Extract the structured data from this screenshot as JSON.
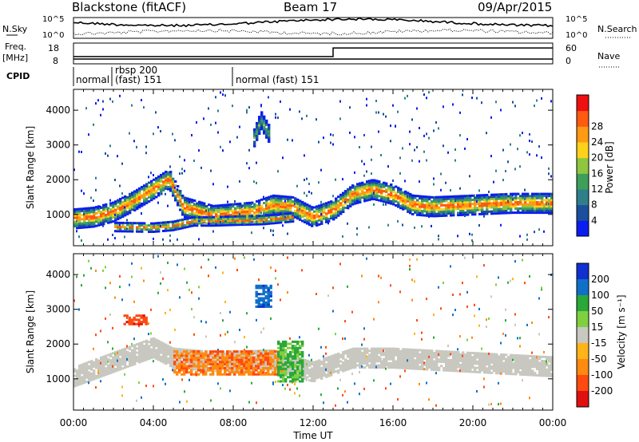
{
  "header": {
    "radar": "Blackstone (fitACF)",
    "beam": "Beam 17",
    "date": "09/Apr/2015"
  },
  "sky_panel": {
    "left_label": "N.Sky",
    "right_label": "N.Search",
    "left_ticks": [
      "10^5",
      "10^0"
    ],
    "right_ticks": [
      "10^5",
      "10^0"
    ]
  },
  "freq_panel": {
    "left_label_1": "Freq.",
    "left_label_2": "[MHz]",
    "right_label": "Nave",
    "left_ticks": [
      "18",
      "8"
    ],
    "right_ticks": [
      "60",
      "0"
    ],
    "freq_mhz": [
      {
        "t": 0,
        "v": 10.3
      },
      {
        "t": 24,
        "v": 10.3
      }
    ],
    "nave": [
      {
        "t": 0,
        "v": 21
      },
      {
        "t": 13,
        "v": 21
      },
      {
        "t": 13,
        "v": 46
      },
      {
        "t": 24,
        "v": 46
      }
    ]
  },
  "cpid": {
    "label": "CPID",
    "segments": [
      {
        "start": 0,
        "text": "normal"
      },
      {
        "start": 2,
        "text_1": "rbsp 200",
        "text_2": "(fast) 151"
      },
      {
        "start": 8,
        "text": "normal (fast) 151"
      }
    ]
  },
  "chart_data": [
    {
      "type": "heatmap",
      "name": "power",
      "ylabel": "Slant Range [km]",
      "yticks": [
        1000,
        2000,
        3000,
        4000
      ],
      "ylim": [
        100,
        4600
      ],
      "xlim": [
        0,
        24
      ],
      "colorbar": {
        "label": "Power [dB]",
        "ticks": [
          4,
          8,
          12,
          16,
          20,
          24,
          28
        ],
        "colors": [
          "#0a1ef0",
          "#1b4f9e",
          "#2f7f8a",
          "#3e9f5a",
          "#8fc640",
          "#ffd21a",
          "#ff9a14",
          "#ff5a10",
          "#ee1010"
        ]
      },
      "bands": [
        {
          "desc": "main scatter band",
          "path": [
            [
              0,
              850
            ],
            [
              1,
              900
            ],
            [
              2,
              1050
            ],
            [
              3,
              1350
            ],
            [
              4,
              1700
            ],
            [
              4.8,
              2000
            ],
            [
              5.5,
              1200
            ],
            [
              7,
              950
            ],
            [
              9,
              1050
            ],
            [
              10,
              1250
            ],
            [
              11,
              1200
            ],
            [
              12,
              900
            ],
            [
              13,
              1100
            ],
            [
              14,
              1550
            ],
            [
              15,
              1700
            ],
            [
              16,
              1550
            ],
            [
              17,
              1250
            ],
            [
              18,
              1200
            ],
            [
              20,
              1250
            ],
            [
              22,
              1300
            ],
            [
              24,
              1300
            ]
          ],
          "width_km": 550,
          "peak_db": 28
        },
        {
          "desc": "lower band",
          "path": [
            [
              2,
              620
            ],
            [
              4,
              600
            ],
            [
              5,
              650
            ],
            [
              6,
              780
            ],
            [
              7,
              780
            ],
            [
              8,
              800
            ],
            [
              9.5,
              820
            ],
            [
              11,
              900
            ]
          ],
          "width_km": 250,
          "peak_db": 26
        },
        {
          "desc": "far range cloud",
          "path": [
            [
              9,
              3100
            ],
            [
              9.4,
              3700
            ],
            [
              9.8,
              3300
            ]
          ],
          "width_km": 500,
          "peak_db": 14
        }
      ]
    },
    {
      "type": "heatmap",
      "name": "velocity",
      "ylabel": "Slant Range [km]",
      "yticks": [
        1000,
        2000,
        3000,
        4000
      ],
      "ylim": [
        100,
        4600
      ],
      "xlim": [
        0,
        24
      ],
      "xticks": [
        "00:00",
        "04:00",
        "08:00",
        "12:00",
        "16:00",
        "20:00",
        "00:00"
      ],
      "xlabel": "Time UT",
      "colorbar": {
        "label": "Velocity [m s⁻¹]",
        "ticks": [
          200,
          100,
          50,
          15,
          -15,
          -50,
          -100,
          -200
        ],
        "colors": [
          "#1030d0",
          "#1070c8",
          "#2aa83a",
          "#7ed040",
          "#c8c8c0",
          "#ffb418",
          "#ff8a10",
          "#ff4a10",
          "#e01010"
        ]
      },
      "regions": [
        {
          "desc": "grey ground scatter",
          "path": [
            [
              0,
              1050
            ],
            [
              4,
              1900
            ],
            [
              5,
              1600
            ],
            [
              7,
              1500
            ],
            [
              10,
              1550
            ],
            [
              12,
              1200
            ],
            [
              14,
              1600
            ],
            [
              16,
              1600
            ],
            [
              24,
              1350
            ]
          ],
          "width_km": 600,
          "vel": 0
        },
        {
          "desc": "negative velocity patch",
          "t": [
            5,
            10.5
          ],
          "r": [
            1100,
            1800
          ],
          "vel": -90
        },
        {
          "desc": "green patch",
          "t": [
            10.2,
            11.4
          ],
          "r": [
            900,
            2100
          ],
          "vel": 60
        },
        {
          "desc": "blue cloud",
          "t": [
            9.1,
            9.9
          ],
          "r": [
            3050,
            3700
          ],
          "vel": 180
        },
        {
          "desc": "red patch",
          "t": [
            2.5,
            3.6
          ],
          "r": [
            2550,
            2800
          ],
          "vel": -180
        }
      ]
    }
  ]
}
